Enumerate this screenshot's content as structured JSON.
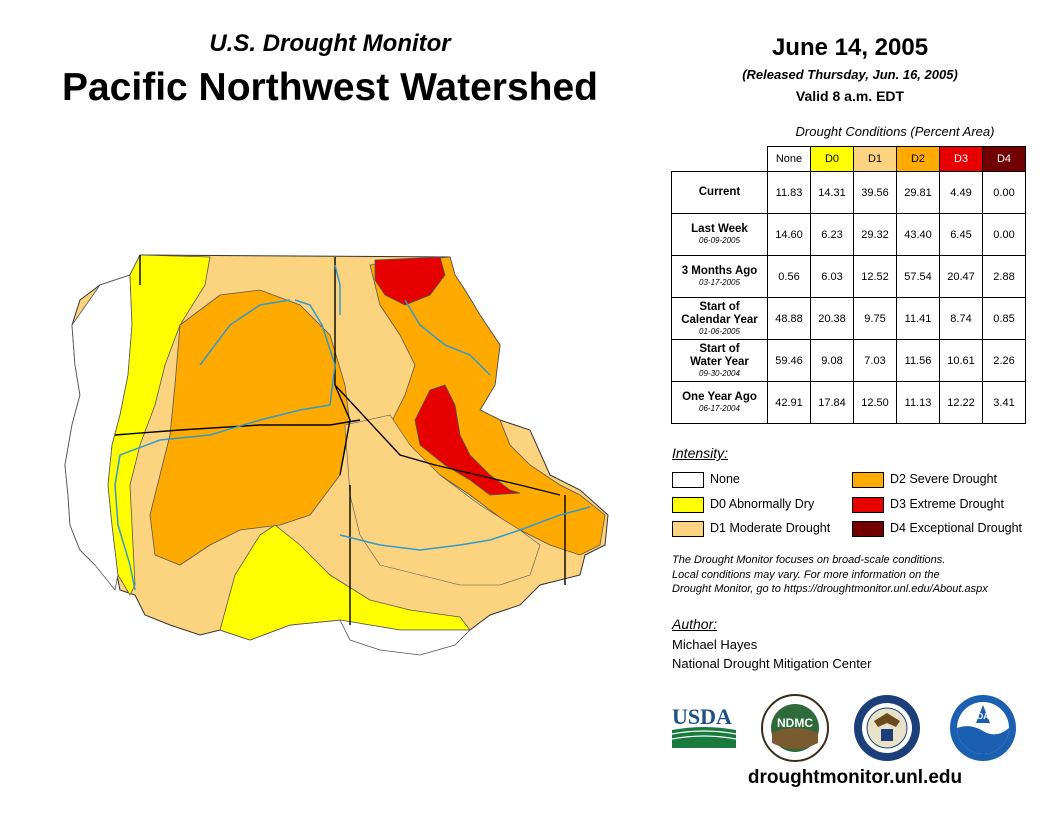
{
  "header": {
    "subtitle": "U.S. Drought Monitor",
    "title": "Pacific Northwest Watershed",
    "date": "June 14, 2005",
    "released": "(Released Thursday, Jun. 16, 2005)",
    "valid": "Valid 8 a.m. EDT"
  },
  "table": {
    "caption": "Drought Conditions (Percent Area)",
    "columns": [
      "None",
      "D0",
      "D1",
      "D2",
      "D3",
      "D4"
    ],
    "rows": [
      {
        "label": "Current",
        "date": "",
        "values": [
          "11.83",
          "14.31",
          "39.56",
          "29.81",
          "4.49",
          "0.00"
        ]
      },
      {
        "label": "Last Week",
        "date": "06-09-2005",
        "values": [
          "14.60",
          "6.23",
          "29.32",
          "43.40",
          "6.45",
          "0.00"
        ]
      },
      {
        "label": "3 Months Ago",
        "date": "03-17-2005",
        "values": [
          "0.56",
          "6.03",
          "12.52",
          "57.54",
          "20.47",
          "2.88"
        ]
      },
      {
        "label1": "Start of",
        "label2": "Calendar Year",
        "date": "01-06-2005",
        "values": [
          "48.88",
          "20.38",
          "9.75",
          "11.41",
          "8.74",
          "0.85"
        ]
      },
      {
        "label1": "Start of",
        "label2": "Water Year",
        "date": "09-30-2004",
        "values": [
          "59.46",
          "9.08",
          "7.03",
          "11.56",
          "10.61",
          "2.26"
        ]
      },
      {
        "label": "One Year Ago",
        "date": "06-17-2004",
        "values": [
          "42.91",
          "17.84",
          "12.50",
          "11.13",
          "12.22",
          "3.41"
        ]
      }
    ]
  },
  "legend": {
    "title": "Intensity:",
    "items": [
      {
        "label": "None",
        "color": "#ffffff"
      },
      {
        "label": "D0 Abnormally Dry",
        "color": "#ffff00"
      },
      {
        "label": "D1 Moderate Drought",
        "color": "#fcd37f"
      },
      {
        "label": "D2 Severe Drought",
        "color": "#ffaa00"
      },
      {
        "label": "D3 Extreme Drought",
        "color": "#e60000"
      },
      {
        "label": "D4 Exceptional Drought",
        "color": "#730000"
      }
    ]
  },
  "note": {
    "line1": "The Drought Monitor focuses on broad-scale conditions.",
    "line2": "Local conditions may vary. For more information on the",
    "line3": "Drought Monitor, go to https://droughtmonitor.unl.edu/About.aspx"
  },
  "author": {
    "title": "Author:",
    "name": "Michael Hayes",
    "org": "National Drought Mitigation Center"
  },
  "logos": {
    "usda": "USDA",
    "ndmc": "NDMC",
    "noaa": "NOAA"
  },
  "footer_url": "droughtmonitor.unl.edu"
}
